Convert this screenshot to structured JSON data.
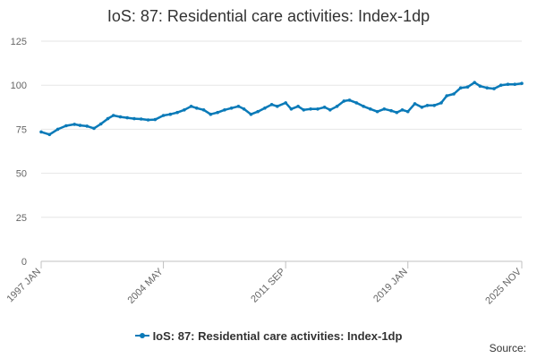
{
  "chart_data": {
    "type": "line",
    "title": "IoS: 87: Residential care activities: Index-1dp",
    "xlabel": "",
    "ylabel": "",
    "ylim": [
      0,
      125
    ],
    "yticks": [
      0,
      25,
      50,
      75,
      100,
      125
    ],
    "xticks": [
      "1997 JAN",
      "2004 MAY",
      "2011 SEP",
      "2019 JAN",
      "2025 NOV"
    ],
    "grid": true,
    "legend_position": "bottom",
    "series": [
      {
        "name": "IoS: 87: Residential care activities: Index-1dp",
        "color": "#0a7ab8",
        "points": [
          [
            "1997 JAN",
            73.5
          ],
          [
            "1997 JUL",
            72.0
          ],
          [
            "1998 JAN",
            75.0
          ],
          [
            "1998 JUL",
            77.0
          ],
          [
            "1999 JAN",
            77.8
          ],
          [
            "1999 MAY",
            77.2
          ],
          [
            "1999 OCT",
            76.8
          ],
          [
            "2000 MAR",
            75.5
          ],
          [
            "2000 AUG",
            78.0
          ],
          [
            "2001 JAN",
            81.0
          ],
          [
            "2001 MAY",
            82.8
          ],
          [
            "2001 OCT",
            82.0
          ],
          [
            "2002 MAR",
            81.5
          ],
          [
            "2002 AUG",
            81.0
          ],
          [
            "2003 JAN",
            80.8
          ],
          [
            "2003 JUN",
            80.3
          ],
          [
            "2003 NOV",
            80.5
          ],
          [
            "2004 MAY",
            82.8
          ],
          [
            "2004 OCT",
            83.5
          ],
          [
            "2005 MAR",
            84.5
          ],
          [
            "2005 AUG",
            86.0
          ],
          [
            "2006 JAN",
            88.0
          ],
          [
            "2006 MAY",
            87.0
          ],
          [
            "2006 OCT",
            86.0
          ],
          [
            "2007 MAR",
            83.5
          ],
          [
            "2007 AUG",
            84.5
          ],
          [
            "2008 JAN",
            86.0
          ],
          [
            "2008 JUN",
            87.0
          ],
          [
            "2008 NOV",
            88.0
          ],
          [
            "2009 MAR",
            86.5
          ],
          [
            "2009 AUG",
            83.5
          ],
          [
            "2010 JAN",
            85.0
          ],
          [
            "2010 JUN",
            87.0
          ],
          [
            "2010 NOV",
            89.0
          ],
          [
            "2011 MAR",
            88.0
          ],
          [
            "2011 SEP",
            90.0
          ],
          [
            "2012 JAN",
            86.5
          ],
          [
            "2012 JUN",
            88.0
          ],
          [
            "2012 OCT",
            86.0
          ],
          [
            "2013 MAR",
            86.5
          ],
          [
            "2013 AUG",
            86.5
          ],
          [
            "2014 JAN",
            87.5
          ],
          [
            "2014 MAY",
            86.0
          ],
          [
            "2014 OCT",
            88.0
          ],
          [
            "2015 MAR",
            91.0
          ],
          [
            "2015 JUL",
            91.5
          ],
          [
            "2015 DEC",
            90.0
          ],
          [
            "2016 MAY",
            88.0
          ],
          [
            "2016 OCT",
            86.5
          ],
          [
            "2017 MAR",
            85.0
          ],
          [
            "2017 AUG",
            86.5
          ],
          [
            "2018 JAN",
            85.5
          ],
          [
            "2018 MAY",
            84.5
          ],
          [
            "2018 SEP",
            86.0
          ],
          [
            "2019 JAN",
            85.0
          ],
          [
            "2019 JUN",
            89.5
          ],
          [
            "2019 NOV",
            87.5
          ],
          [
            "2020 MAR",
            88.5
          ],
          [
            "2020 AUG",
            88.5
          ],
          [
            "2021 JAN",
            90.0
          ],
          [
            "2021 MAY",
            94.0
          ],
          [
            "2021 OCT",
            95.0
          ],
          [
            "2022 MAR",
            98.5
          ],
          [
            "2022 AUG",
            99.0
          ],
          [
            "2023 JAN",
            101.5
          ],
          [
            "2023 MAY",
            99.5
          ],
          [
            "2023 OCT",
            98.5
          ],
          [
            "2024 MAR",
            98.0
          ],
          [
            "2024 AUG",
            100.0
          ],
          [
            "2025 JAN",
            100.5
          ],
          [
            "2025 JUN",
            100.5
          ],
          [
            "2025 NOV",
            101.0
          ]
        ]
      }
    ]
  },
  "legend": {
    "label": "IoS: 87: Residential care activities: Index-1dp"
  },
  "footer": {
    "source_label": "Source:"
  }
}
